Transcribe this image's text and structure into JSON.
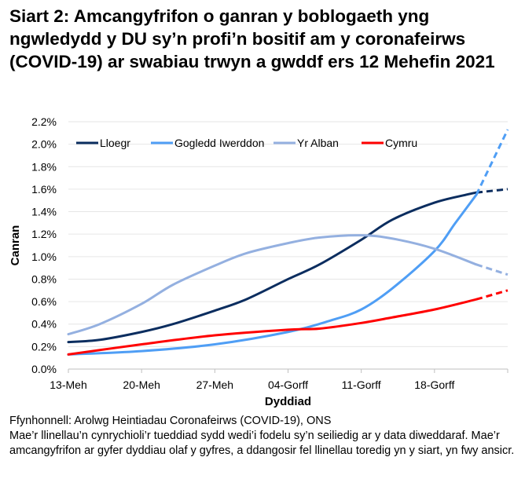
{
  "chart_data": {
    "type": "line",
    "title": "Siart 2: Amcangyfrifon o ganran y boblogaeth yng ngwledydd y DU sy’n profi’n bositif am y coronafeirws (COVID-19) ar swabiau trwyn a gwddf ers 12 Mehefin 2021",
    "xlabel": "Dyddiad",
    "ylabel": "Canran",
    "x_ticks": [
      "13-Meh",
      "20-Meh",
      "27-Meh",
      "04-Gorff",
      "11-Gorff",
      "18-Gorff"
    ],
    "y_ticks": [
      "0.0%",
      "0.2%",
      "0.4%",
      "0.6%",
      "0.8%",
      "1.0%",
      "1.2%",
      "1.4%",
      "1.6%",
      "1.8%",
      "2.0%",
      "2.2%"
    ],
    "ylim": [
      0,
      2.2
    ],
    "x_days_since_13_Meh_range": [
      0,
      42
    ],
    "grid": "horizontal",
    "legend": "top",
    "dashed_from_day": 39,
    "series": [
      {
        "name": "Lloegr",
        "color": "#0b2d5f",
        "x": [
          0,
          3,
          7,
          10,
          14,
          17,
          21,
          24,
          28,
          31,
          35,
          38,
          39,
          42
        ],
        "values": [
          0.24,
          0.26,
          0.33,
          0.4,
          0.52,
          0.62,
          0.8,
          0.93,
          1.15,
          1.33,
          1.48,
          1.55,
          1.57,
          1.6
        ]
      },
      {
        "name": "Gogledd Iwerddon",
        "color": "#4f9ef5",
        "x": [
          0,
          7,
          14,
          21,
          25,
          28,
          31,
          35,
          37,
          39,
          42
        ],
        "values": [
          0.13,
          0.16,
          0.22,
          0.33,
          0.43,
          0.53,
          0.72,
          1.05,
          1.3,
          1.55,
          2.13
        ]
      },
      {
        "name": "Yr Alban",
        "color": "#94b0e0",
        "x": [
          0,
          3,
          7,
          10,
          14,
          17,
          21,
          24,
          28,
          31,
          35,
          39,
          42
        ],
        "values": [
          0.31,
          0.4,
          0.58,
          0.75,
          0.92,
          1.03,
          1.12,
          1.17,
          1.19,
          1.16,
          1.07,
          0.93,
          0.84
        ]
      },
      {
        "name": "Cymru",
        "color": "#ff0000",
        "x": [
          0,
          7,
          14,
          21,
          24,
          28,
          31,
          35,
          39,
          42
        ],
        "values": [
          0.13,
          0.22,
          0.3,
          0.35,
          0.36,
          0.41,
          0.46,
          0.53,
          0.62,
          0.7
        ]
      }
    ]
  },
  "footnotes": {
    "source": "Ffynhonnell: Arolwg Heintiadau Coronafeirws (COVID-19), ONS",
    "note": "Mae’r llinellau’n cynrychioli’r tueddiad sydd wedi’i fodelu sy’n seiliedig ar y data diweddaraf. Mae’r amcangyfrifon ar gyfer dyddiau olaf y gyfres, a ddangosir fel llinellau toredig yn y siart, yn fwy ansicr."
  }
}
